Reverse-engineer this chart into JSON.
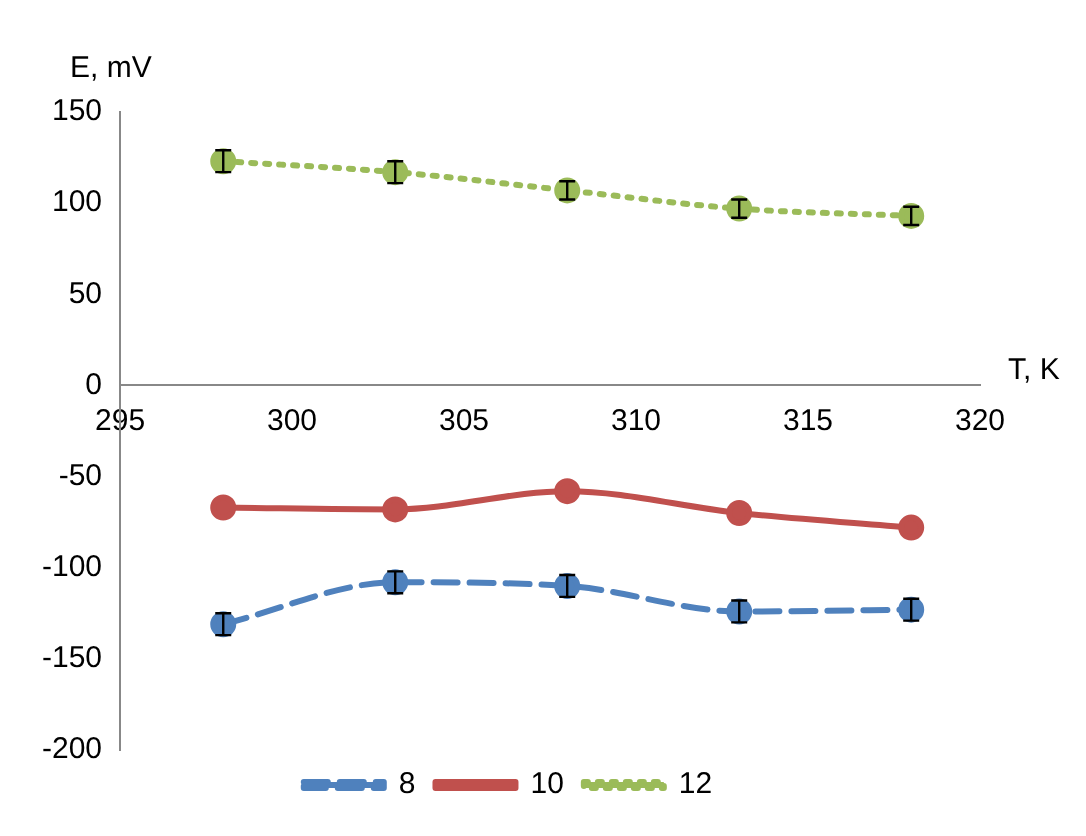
{
  "chart_data": {
    "type": "line",
    "xlabel": "T, K",
    "ylabel": "E, mV",
    "x": [
      298,
      303,
      308,
      313,
      318
    ],
    "series": [
      {
        "name": "8",
        "color": "#4f81bd",
        "line_style": "dashed",
        "values": [
          -131,
          -108,
          -110,
          -124,
          -123
        ],
        "errors": [
          6,
          6,
          6,
          6,
          6
        ]
      },
      {
        "name": "10",
        "color": "#c0504d",
        "line_style": "solid",
        "values": [
          -67,
          -68,
          -58,
          -70,
          -78
        ]
      },
      {
        "name": "12",
        "color": "#9bbb59",
        "line_style": "dotted",
        "values": [
          123,
          117,
          107,
          97,
          93
        ],
        "errors": [
          6,
          6,
          5,
          5,
          5
        ]
      }
    ],
    "xlim": [
      295,
      320
    ],
    "xticks": [
      295,
      300,
      305,
      310,
      315,
      320
    ],
    "ylim": [
      -200,
      150
    ],
    "yticks": [
      -200,
      -150,
      -100,
      -50,
      0,
      50,
      100,
      150
    ],
    "marker": "circle",
    "grid": false,
    "legend": "bottom"
  }
}
